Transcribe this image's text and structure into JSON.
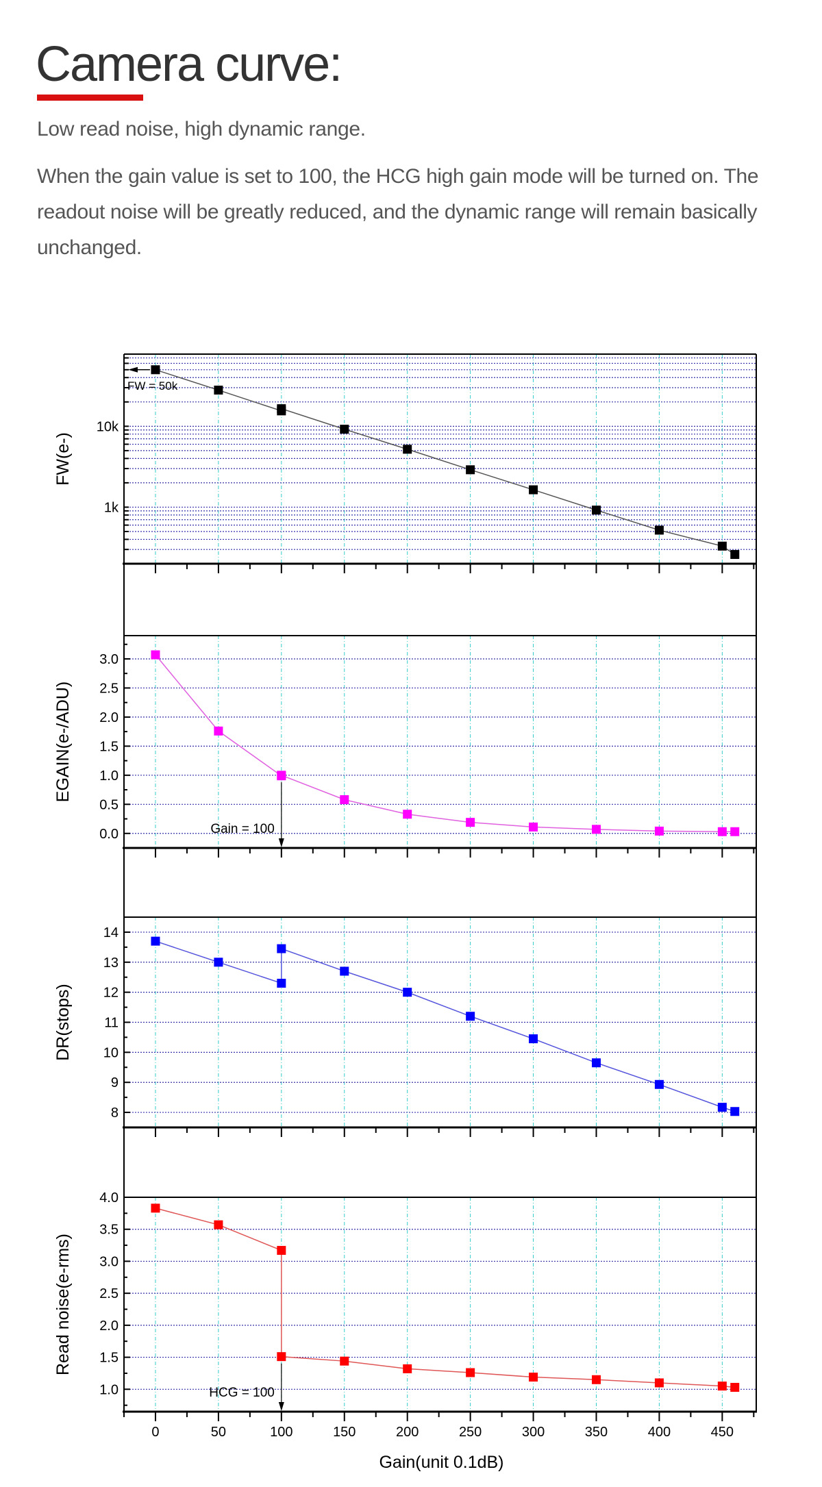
{
  "header": {
    "title": "Camera curve:",
    "subtitle": "Low read noise, high dynamic range.",
    "description": "When the gain value is set to 100, the HCG high gain mode will be turned on. The readout noise will be greatly reduced, and the dynamic range will remain basically unchanged.",
    "accent_color": "#d81010"
  },
  "chart_data": [
    {
      "type": "line",
      "name": "fw",
      "ylabel": "FW(e-)",
      "yscale": "log",
      "ylim": [
        200,
        78000
      ],
      "yticks": [
        {
          "v": 1000,
          "label": "1k"
        },
        {
          "v": 10000,
          "label": "10k"
        }
      ],
      "x": [
        0,
        50,
        100,
        100,
        150,
        200,
        250,
        300,
        350,
        400,
        450,
        460
      ],
      "y": [
        50000,
        28000,
        15500,
        16500,
        9200,
        5200,
        2900,
        1640,
        920,
        520,
        330,
        260
      ],
      "color": "#000000",
      "line_color": "#555555",
      "annotation": {
        "text": "FW = 50k",
        "arrow": "left",
        "x": 0,
        "y": 50000
      }
    },
    {
      "type": "line",
      "name": "egain",
      "ylabel": "EGAIN(e-/ADU)",
      "yscale": "linear",
      "ylim": [
        -0.25,
        3.4
      ],
      "yticks": [
        {
          "v": 0,
          "label": "0.0"
        },
        {
          "v": 0.5,
          "label": "0.5"
        },
        {
          "v": 1,
          "label": "1.0"
        },
        {
          "v": 1.5,
          "label": "1.5"
        },
        {
          "v": 2,
          "label": "2.0"
        },
        {
          "v": 2.5,
          "label": "2.5"
        },
        {
          "v": 3,
          "label": "3.0"
        }
      ],
      "x": [
        0,
        50,
        100,
        100,
        150,
        200,
        250,
        300,
        350,
        400,
        450,
        460
      ],
      "y": [
        3.07,
        1.76,
        0.99,
        1.0,
        0.58,
        0.33,
        0.19,
        0.11,
        0.07,
        0.04,
        0.03,
        0.03
      ],
      "color": "#ff00ff",
      "line_color": "#e060e0",
      "annotation": {
        "text": "Gain = 100",
        "arrow": "down",
        "x": 100,
        "y": 1.0
      }
    },
    {
      "type": "line",
      "name": "dr",
      "ylabel": "DR(stops)",
      "yscale": "linear",
      "ylim": [
        7.5,
        14.5
      ],
      "yticks": [
        {
          "v": 8,
          "label": "8"
        },
        {
          "v": 9,
          "label": "9"
        },
        {
          "v": 10,
          "label": "10"
        },
        {
          "v": 11,
          "label": "11"
        },
        {
          "v": 12,
          "label": "12"
        },
        {
          "v": 13,
          "label": "13"
        },
        {
          "v": 14,
          "label": "14"
        }
      ],
      "x": [
        0,
        50,
        100,
        100,
        150,
        200,
        250,
        300,
        350,
        400,
        450,
        460
      ],
      "y": [
        13.7,
        13.0,
        12.3,
        13.45,
        12.7,
        12.0,
        11.2,
        10.45,
        9.65,
        8.93,
        8.17,
        8.03
      ],
      "color": "#0000ff",
      "line_color": "#5555dd"
    },
    {
      "type": "line",
      "name": "read-noise",
      "ylabel": "Read noise(e-rms)",
      "yscale": "linear",
      "ylim": [
        0.65,
        4.0
      ],
      "yticks": [
        {
          "v": 1,
          "label": "1.0"
        },
        {
          "v": 1.5,
          "label": "1.5"
        },
        {
          "v": 2,
          "label": "2.0"
        },
        {
          "v": 2.5,
          "label": "2.5"
        },
        {
          "v": 3,
          "label": "3.0"
        },
        {
          "v": 3.5,
          "label": "3.5"
        },
        {
          "v": 4,
          "label": "4.0"
        }
      ],
      "x": [
        0,
        50,
        100,
        100,
        150,
        200,
        250,
        300,
        350,
        400,
        450,
        460
      ],
      "y": [
        3.83,
        3.57,
        3.17,
        1.51,
        1.44,
        1.32,
        1.26,
        1.19,
        1.15,
        1.1,
        1.05,
        1.03
      ],
      "color": "#ff0000",
      "line_color": "#e05555",
      "annotation": {
        "text": "HCG = 100",
        "arrow": "down",
        "x": 100,
        "y": 1.51
      }
    }
  ],
  "x_axis": {
    "label": "Gain(unit 0.1dB)",
    "xlim": [
      -25,
      477
    ],
    "ticks": [
      0,
      50,
      100,
      150,
      200,
      250,
      300,
      350,
      400,
      450
    ],
    "grid_color": "#33cccc",
    "ygrid_color": "#3333aa"
  }
}
